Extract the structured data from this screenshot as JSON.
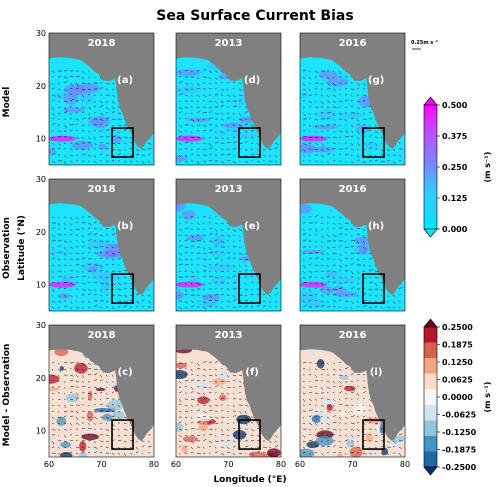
{
  "title": "Sea Surface Current Bias",
  "row_labels": [
    "Model",
    "Observation",
    "Model - Observation"
  ],
  "ylabel": "Latitude (°N)",
  "xlabel": "Longitude (°E)",
  "scale_label": "0.25m  s⁻¹",
  "colorbar_top": {
    "unit": "(m  s⁻¹)",
    "ticks": [
      "0.500",
      "0.375",
      "0.250",
      "0.125",
      "0.000"
    ],
    "colors": [
      "#ff00ff",
      "#00e5ff"
    ]
  },
  "colorbar_bottom": {
    "unit": "(m  s⁻¹)",
    "ticks": [
      "0.2500",
      "0.1875",
      "0.1250",
      "0.0625",
      "0.0000",
      "-0.0625",
      "-0.1250",
      "-0.1875",
      "-0.2500"
    ],
    "colors": [
      "#67001f",
      "#b2182b",
      "#d6604d",
      "#f4a582",
      "#fddbc7",
      "#f7f7f7",
      "#d1e5f0",
      "#92c5de",
      "#4393c3",
      "#2166ac",
      "#053061"
    ]
  },
  "chart_data": {
    "type": "heatmap",
    "panels": [
      {
        "letter": "(a)",
        "year": "2018",
        "row": "Model"
      },
      {
        "letter": "(d)",
        "year": "2013",
        "row": "Model"
      },
      {
        "letter": "(g)",
        "year": "2016",
        "row": "Model"
      },
      {
        "letter": "(b)",
        "year": "2018",
        "row": "Observation"
      },
      {
        "letter": "(e)",
        "year": "2013",
        "row": "Observation"
      },
      {
        "letter": "(h)",
        "year": "2016",
        "row": "Observation"
      },
      {
        "letter": "(c)",
        "year": "2018",
        "row": "Model - Observation"
      },
      {
        "letter": "(f)",
        "year": "2013",
        "row": "Model - Observation"
      },
      {
        "letter": "(i)",
        "year": "2016",
        "row": "Model - Observation"
      }
    ],
    "x_ticks": [
      60,
      70,
      80
    ],
    "y_ticks": [
      10,
      20,
      30
    ],
    "xlim": [
      60,
      80
    ],
    "ylim": [
      5,
      30
    ],
    "box_region": {
      "lon": [
        72,
        76
      ],
      "lat": [
        6.5,
        12
      ]
    },
    "colorbar_top_range": [
      0.0,
      0.5
    ],
    "colorbar_bottom_range": [
      -0.25,
      0.25
    ]
  }
}
